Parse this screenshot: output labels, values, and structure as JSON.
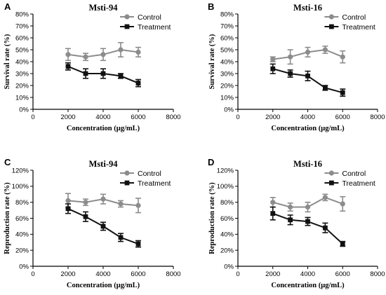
{
  "chart_data": [
    {
      "type": "line",
      "panel": "A",
      "title": "Msti-94",
      "xlabel": "Concentration (μg/mL)",
      "ylabel": "Survival rate (%)",
      "xlim": [
        0,
        8000
      ],
      "xticks": [
        0,
        2000,
        4000,
        6000,
        8000
      ],
      "ylim": [
        0,
        80
      ],
      "yticks": [
        0,
        10,
        20,
        30,
        40,
        50,
        60,
        70,
        80
      ],
      "ytick_suffix": "%",
      "grid": false,
      "legend": "top-right",
      "series": [
        {
          "name": "Control",
          "color": "#8c8c8c",
          "marker": "circle",
          "x": [
            2000,
            3000,
            4000,
            5000,
            6000
          ],
          "values": [
            46,
            44,
            46,
            50,
            48
          ],
          "errors": [
            5,
            3,
            5,
            6,
            4
          ]
        },
        {
          "name": "Treatment",
          "color": "#111111",
          "marker": "square",
          "x": [
            2000,
            3000,
            4000,
            5000,
            6000
          ],
          "values": [
            36,
            30,
            30,
            28,
            22
          ],
          "errors": [
            3,
            4,
            4,
            2,
            3
          ]
        }
      ]
    },
    {
      "type": "line",
      "panel": "B",
      "title": "Msti-16",
      "xlabel": "Concentration (μg/mL)",
      "ylabel": "Survival rate (%)",
      "xlim": [
        0,
        8000
      ],
      "xticks": [
        0,
        2000,
        4000,
        6000,
        8000
      ],
      "ylim": [
        0,
        80
      ],
      "yticks": [
        0,
        10,
        20,
        30,
        40,
        50,
        60,
        70,
        80
      ],
      "ytick_suffix": "%",
      "grid": false,
      "legend": "top-right",
      "series": [
        {
          "name": "Control",
          "color": "#8c8c8c",
          "marker": "circle",
          "x": [
            2000,
            3000,
            4000,
            5000,
            6000
          ],
          "values": [
            42,
            44,
            48,
            50,
            44
          ],
          "errors": [
            2,
            6,
            4,
            3,
            5
          ]
        },
        {
          "name": "Treatment",
          "color": "#111111",
          "marker": "square",
          "x": [
            2000,
            3000,
            4000,
            5000,
            6000
          ],
          "values": [
            34,
            30,
            28,
            18,
            14
          ],
          "errors": [
            4,
            3,
            4,
            2,
            3
          ]
        }
      ]
    },
    {
      "type": "line",
      "panel": "C",
      "title": "Msti-94",
      "xlabel": "Concentration (μg/mL)",
      "ylabel": "Reproduction rate (%)",
      "xlim": [
        0,
        8000
      ],
      "xticks": [
        0,
        2000,
        4000,
        6000,
        8000
      ],
      "ylim": [
        0,
        120
      ],
      "yticks": [
        0,
        20,
        40,
        60,
        80,
        100,
        120
      ],
      "ytick_suffix": "%",
      "grid": false,
      "legend": "top-right",
      "series": [
        {
          "name": "Control",
          "color": "#8c8c8c",
          "marker": "circle",
          "x": [
            2000,
            3000,
            4000,
            5000,
            6000
          ],
          "values": [
            82,
            80,
            84,
            78,
            76
          ],
          "errors": [
            9,
            4,
            6,
            4,
            9
          ]
        },
        {
          "name": "Treatment",
          "color": "#111111",
          "marker": "square",
          "x": [
            2000,
            3000,
            4000,
            5000,
            6000
          ],
          "values": [
            72,
            62,
            50,
            36,
            28
          ],
          "errors": [
            6,
            6,
            5,
            5,
            4
          ]
        }
      ]
    },
    {
      "type": "line",
      "panel": "D",
      "title": "Msti-16",
      "xlabel": "Concentration (μg/mL)",
      "ylabel": "Reproduction rate (%)",
      "xlim": [
        0,
        8000
      ],
      "xticks": [
        0,
        2000,
        4000,
        6000,
        8000
      ],
      "ylim": [
        0,
        120
      ],
      "yticks": [
        0,
        20,
        40,
        60,
        80,
        100,
        120
      ],
      "ytick_suffix": "%",
      "grid": false,
      "legend": "top-right",
      "series": [
        {
          "name": "Control",
          "color": "#8c8c8c",
          "marker": "circle",
          "x": [
            2000,
            3000,
            4000,
            5000,
            6000
          ],
          "values": [
            80,
            74,
            74,
            86,
            78
          ],
          "errors": [
            6,
            5,
            6,
            4,
            9
          ]
        },
        {
          "name": "Treatment",
          "color": "#111111",
          "marker": "square",
          "x": [
            2000,
            3000,
            4000,
            5000,
            6000
          ],
          "values": [
            66,
            58,
            56,
            48,
            28
          ],
          "errors": [
            8,
            6,
            5,
            6,
            3
          ]
        }
      ]
    }
  ]
}
